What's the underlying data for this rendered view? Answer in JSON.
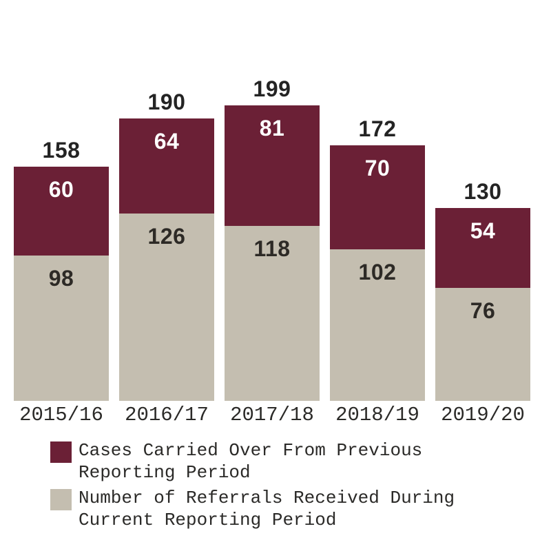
{
  "chart_data": {
    "type": "bar",
    "stacked": true,
    "title": "",
    "xlabel": "",
    "ylabel": "",
    "categories": [
      "2015/16",
      "2016/17",
      "2017/18",
      "2018/19",
      "2019/20"
    ],
    "series": [
      {
        "name": "Cases Carried Over From Previous Reporting Period",
        "color": "#6b2036",
        "label_color": "#ffffff",
        "position": "top",
        "values": [
          60,
          64,
          81,
          70,
          54
        ]
      },
      {
        "name": "Number of Referrals Received During Current Reporting Period",
        "color": "#c4beb0",
        "label_color": "#2d2a26",
        "position": "bottom",
        "values": [
          98,
          126,
          118,
          102,
          76
        ]
      }
    ],
    "totals": [
      158,
      190,
      199,
      172,
      130
    ],
    "grid": false,
    "y_axis_shown": false,
    "legend_position": "bottom-left"
  },
  "legend": {
    "items": [
      {
        "label": "Cases Carried Over From Previous\nReporting Period",
        "color": "#6b2036"
      },
      {
        "label": "Number of Referrals Received During\nCurrent Reporting Period",
        "color": "#c4beb0"
      }
    ]
  },
  "colors": {
    "background": "#ffffff",
    "total_label": "#242424",
    "axis_label": "#2b2a28",
    "legend_text": "#2b2a28"
  }
}
